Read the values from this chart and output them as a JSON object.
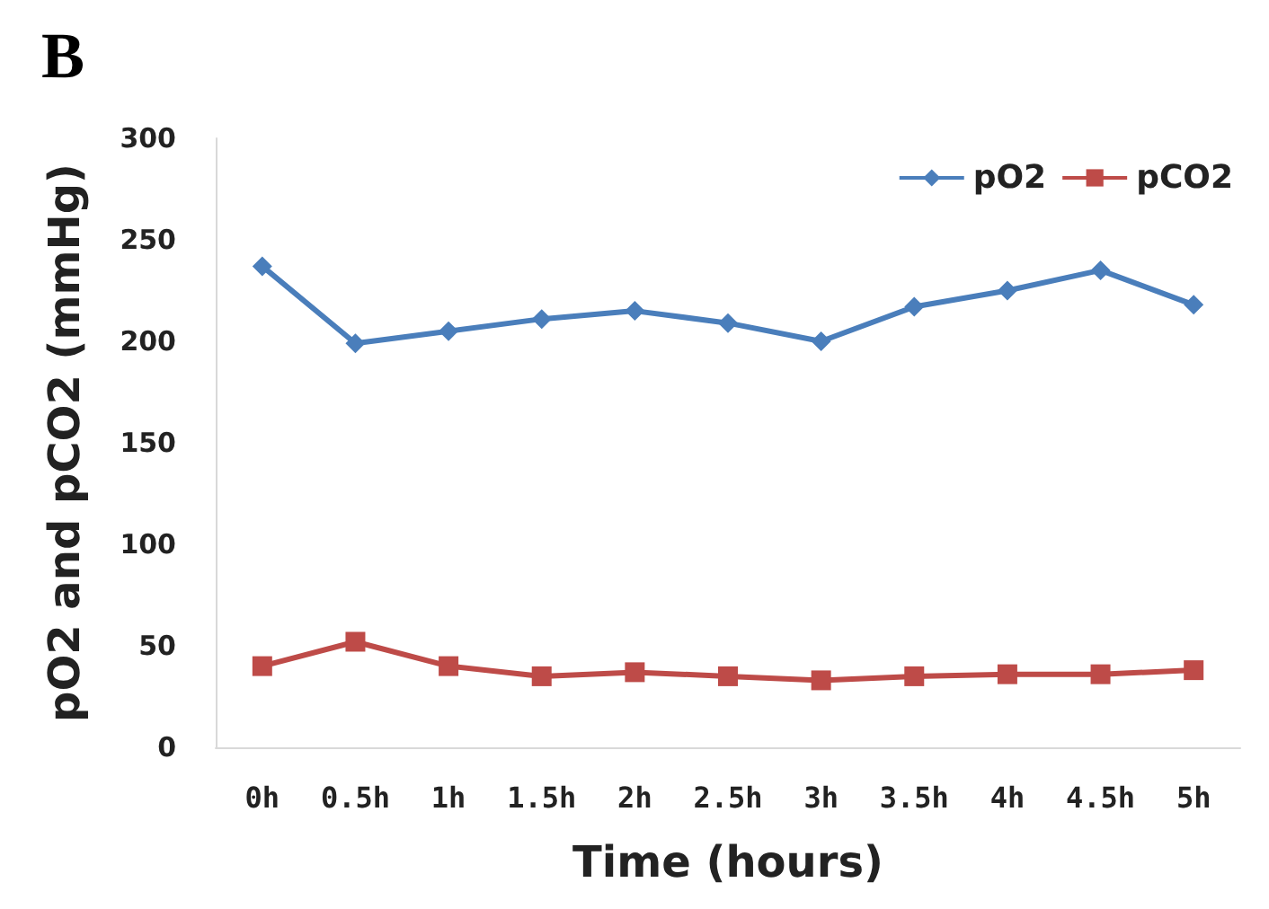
{
  "chart_data": {
    "type": "line",
    "title": "B",
    "xlabel": "Time (hours)",
    "ylabel": "pO2 and pCO2 (mmHg)",
    "categories": [
      "0h",
      "0.5h",
      "1h",
      "1.5h",
      "2h",
      "2.5h",
      "3h",
      "3.5h",
      "4h",
      "4.5h",
      "5h"
    ],
    "series": [
      {
        "name": "pO2",
        "color": "#4a7ebb",
        "marker": "diamond",
        "values": [
          237,
          199,
          205,
          211,
          215,
          209,
          200,
          217,
          225,
          235,
          218
        ]
      },
      {
        "name": "pCO2",
        "color": "#be4b48",
        "marker": "square",
        "values": [
          40,
          52,
          40,
          35,
          37,
          35,
          33,
          35,
          36,
          36,
          38
        ]
      }
    ],
    "ylim": [
      0,
      300
    ],
    "yticks": [
      0,
      50,
      100,
      150,
      200,
      250,
      300
    ],
    "grid": false,
    "legend": "top right",
    "line_style": "solid"
  }
}
